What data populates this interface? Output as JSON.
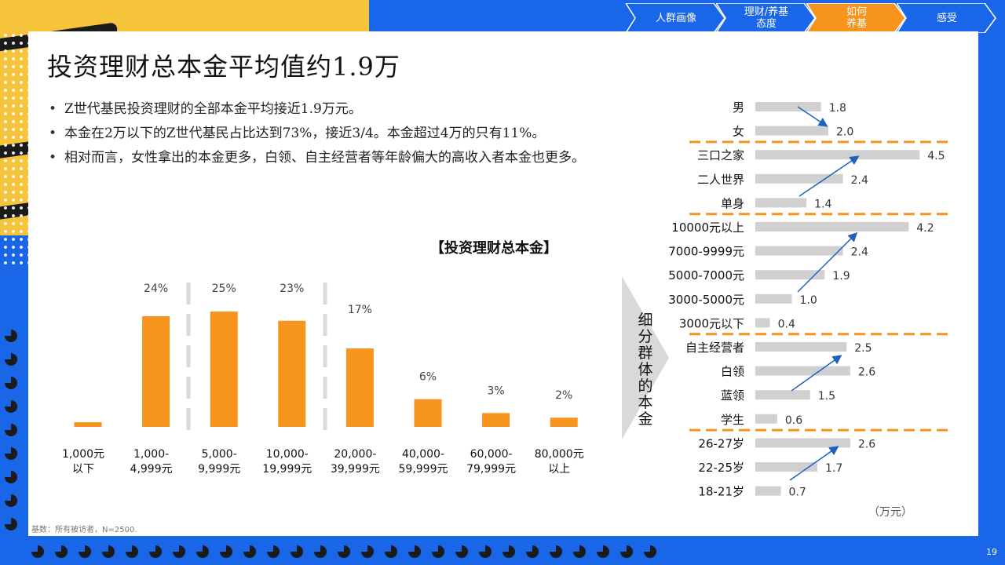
{
  "nav": {
    "tabs": [
      {
        "label": "人群画像",
        "active": false
      },
      {
        "label": "理财/养基\n态度",
        "active": false
      },
      {
        "label": "如何\n养基",
        "active": true
      },
      {
        "label": "感受",
        "active": false
      }
    ]
  },
  "title": "投资理财总本金平均值约1.9万",
  "bullets": [
    "Z世代基民投资理财的全部本金平均接近1.9万元。",
    "本金在2万以下的Z世代基民占比达到73%，接近3/4。本金超过4万的只有11%。",
    "相对而言，女性拿出的本金更多，白领、自主经营者等年龄偏大的高收入者本金也更多。"
  ],
  "segment_label": "细分群体的本金",
  "unit_label": "（万元）",
  "footnote": "基数：所有被访者，N=2500.",
  "page_number": "19",
  "colors": {
    "bar_orange": "#f7941d",
    "bar_gray": "#d0d0d0",
    "arrow_blue": "#1f5fbf",
    "background_blue": "#1a66e8",
    "accent_yellow": "#f5c43a"
  },
  "chart_data": [
    {
      "type": "bar",
      "title": "【投资理财总本金】",
      "categories": [
        "1,000元\n以下",
        "1,000-\n4,999元",
        "5,000-\n9,999元",
        "10,000-\n19,999元",
        "20,000-\n39,999元",
        "40,000-\n59,999元",
        "60,000-\n79,999元",
        "80,000元\n以上"
      ],
      "values": [
        1,
        24,
        25,
        23,
        17,
        6,
        3,
        2
      ],
      "value_labels": [
        "",
        "24%",
        "25%",
        "23%",
        "17%",
        "6%",
        "3%",
        "2%"
      ],
      "ylim": [
        0,
        25
      ]
    },
    {
      "type": "bar",
      "orientation": "horizontal",
      "title": "",
      "xlabel": "（万元）",
      "groups": [
        {
          "items": [
            {
              "label": "男",
              "value": 1.8
            },
            {
              "label": "女",
              "value": 2.0
            }
          ]
        },
        {
          "items": [
            {
              "label": "三口之家",
              "value": 4.5
            },
            {
              "label": "二人世界",
              "value": 2.4
            },
            {
              "label": "单身",
              "value": 1.4
            }
          ]
        },
        {
          "items": [
            {
              "label": "10000元以上",
              "value": 4.2
            },
            {
              "label": "7000-9999元",
              "value": 2.4
            },
            {
              "label": "5000-7000元",
              "value": 1.9
            },
            {
              "label": "3000-5000元",
              "value": 1.0
            },
            {
              "label": "3000元以下",
              "value": 0.4
            }
          ]
        },
        {
          "items": [
            {
              "label": "自主经营者",
              "value": 2.5
            },
            {
              "label": "白领",
              "value": 2.6
            },
            {
              "label": "蓝领",
              "value": 1.5
            },
            {
              "label": "学生",
              "value": 0.6
            }
          ]
        },
        {
          "items": [
            {
              "label": "26-27岁",
              "value": 2.6
            },
            {
              "label": "22-25岁",
              "value": 1.7
            },
            {
              "label": "18-21岁",
              "value": 0.7
            }
          ]
        }
      ],
      "xlim": [
        0,
        5
      ]
    }
  ]
}
